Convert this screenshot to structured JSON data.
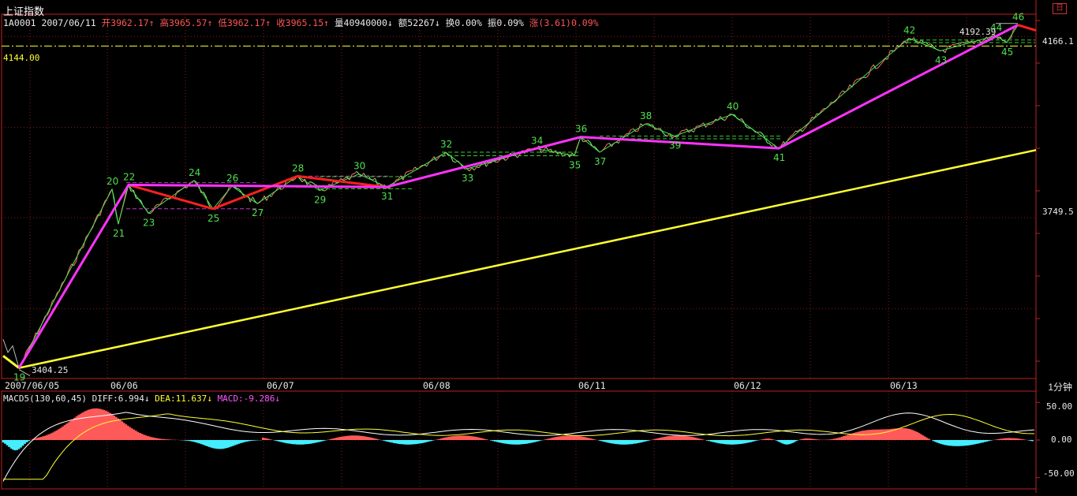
{
  "window": {
    "title": "上证指数",
    "day_button": "日"
  },
  "quote": {
    "code_date": "1A0001 2007/06/11",
    "open": "开3962.17",
    "high": "高3965.57",
    "low": "低3962.17",
    "close": "收3965.15",
    "volume": "量40940000",
    "amount": "额52267",
    "turnover": "换0.00%",
    "amplitude": "振0.09%",
    "change": "涨(3.61)0.09%"
  },
  "price_axis": {
    "labels": [
      "4166.1",
      "3749.5"
    ],
    "ref_line_label": "4144.00"
  },
  "annotations": {
    "low_value": "3404.25",
    "high_value": "4192.39"
  },
  "x_labels": [
    "2007/06/05",
    "06/06",
    "06/07",
    "06/08",
    "06/11",
    "06/12",
    "06/13"
  ],
  "period": "1分钟",
  "macd": {
    "name": "MACD5(130,60,45)",
    "diff": "DIFF:6.994",
    "dea": "DEA:11.637",
    "macd": "MACD:-9.286",
    "axis_labels": [
      "50.00",
      "0.00",
      "-50.00"
    ]
  },
  "colors": {
    "up": "#ff5555",
    "down": "#5fe65f",
    "pink": "#ff33ff",
    "red": "#ff2020",
    "yellow": "#ffff33",
    "cyan": "#44eeff"
  },
  "chart_data": {
    "type": "line",
    "title": "上证指数 1分钟",
    "x_dates": [
      "2007/06/05",
      "06/06",
      "06/07",
      "06/08",
      "06/11",
      "06/12",
      "06/13"
    ],
    "ylim": [
      3380,
      4210
    ],
    "wave_points": [
      {
        "label": "19",
        "value": 3404.25
      },
      {
        "label": "20",
        "value": 3815
      },
      {
        "label": "21",
        "value": 3735
      },
      {
        "label": "22",
        "value": 3825
      },
      {
        "label": "23",
        "value": 3760
      },
      {
        "label": "24",
        "value": 3835
      },
      {
        "label": "25",
        "value": 3770
      },
      {
        "label": "26",
        "value": 3822
      },
      {
        "label": "27",
        "value": 3782
      },
      {
        "label": "28",
        "value": 3845
      },
      {
        "label": "29",
        "value": 3812
      },
      {
        "label": "30",
        "value": 3850
      },
      {
        "label": "31",
        "value": 3820
      },
      {
        "label": "32",
        "value": 3900
      },
      {
        "label": "33",
        "value": 3862
      },
      {
        "label": "34",
        "value": 3908
      },
      {
        "label": "35",
        "value": 3892
      },
      {
        "label": "36",
        "value": 3935
      },
      {
        "label": "37",
        "value": 3900
      },
      {
        "label": "38",
        "value": 3965
      },
      {
        "label": "39",
        "value": 3937
      },
      {
        "label": "40",
        "value": 3987
      },
      {
        "label": "41",
        "value": 3909
      },
      {
        "label": "42",
        "value": 4162
      },
      {
        "label": "43",
        "value": 4133
      },
      {
        "label": "44",
        "value": 4168
      },
      {
        "label": "45",
        "value": 4152
      },
      {
        "label": "46",
        "value": 4192.39
      }
    ],
    "ref_level": 4144.0,
    "trend_line": {
      "from": 3404.25,
      "to": 3905
    },
    "macd_ylim": [
      -65,
      65
    ],
    "macd_axis": [
      50,
      0,
      -50
    ]
  }
}
